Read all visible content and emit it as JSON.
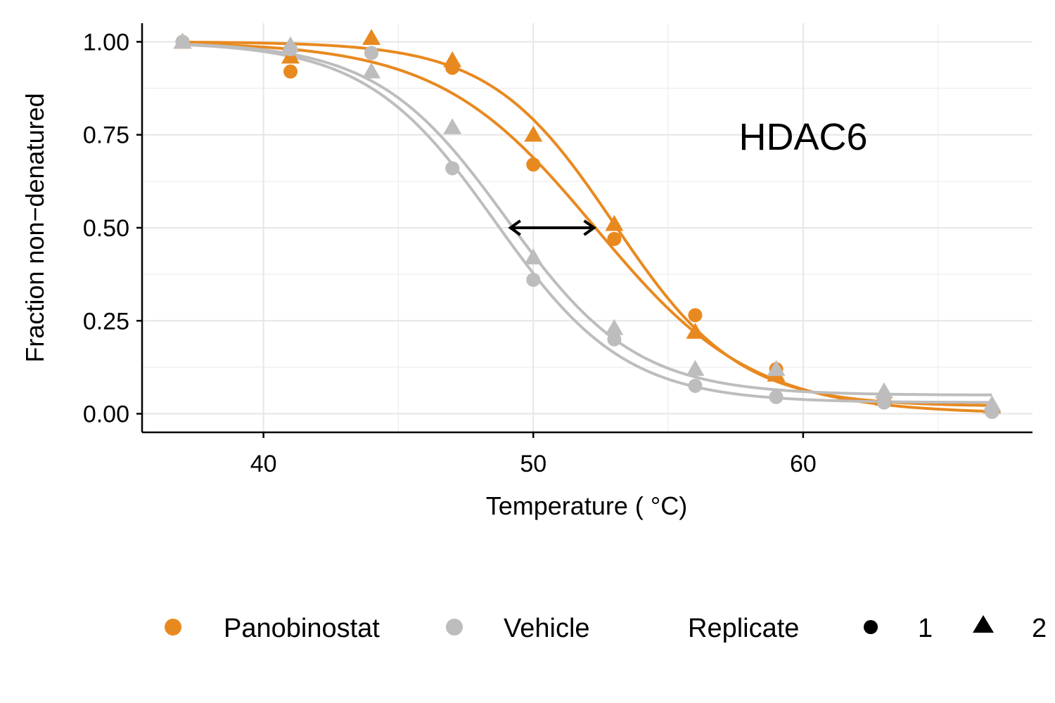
{
  "chart_data": {
    "type": "scatter",
    "title": "",
    "annotation": "HDAC6",
    "xlabel": "Temperature ( °C)",
    "ylabel": "Fraction non−denatured",
    "xlim": [
      35.5,
      68.5
    ],
    "ylim": [
      -0.05,
      1.05
    ],
    "x_ticks": [
      40,
      50,
      60
    ],
    "x_tick_labels": [
      "40",
      "50",
      "60"
    ],
    "y_ticks": [
      0,
      0.25,
      0.5,
      0.75,
      1
    ],
    "y_tick_labels": [
      "0.00",
      "0.25",
      "0.50",
      "0.75",
      "1.00"
    ],
    "grid": true,
    "legend_position": "bottom",
    "colors": {
      "Panobinostat": "#e8891f",
      "Vehicle": "#bdbdbd"
    },
    "legend": {
      "treatments": [
        "Panobinostat",
        "Vehicle"
      ],
      "replicate_title": "Replicate",
      "replicates": [
        "1",
        "2"
      ]
    },
    "series": [
      {
        "name": "Panobinostat",
        "replicate": "1",
        "x": [
          37,
          41,
          44,
          47,
          50,
          53,
          56,
          59,
          63,
          67
        ],
        "y": [
          1.0,
          0.92,
          0.97,
          0.93,
          0.67,
          0.47,
          0.265,
          0.12,
          0.035,
          0.005
        ],
        "fit": {
          "tm": 52.3,
          "slope": 2.9,
          "plateau": 0.0
        }
      },
      {
        "name": "Panobinostat",
        "replicate": "2",
        "x": [
          37,
          41,
          44,
          47,
          50,
          53,
          56,
          59,
          63,
          67
        ],
        "y": [
          1.0,
          0.96,
          1.01,
          0.95,
          0.75,
          0.51,
          0.22,
          0.105,
          0.04,
          0.02
        ],
        "fit": {
          "tm": 53.0,
          "slope": 2.3,
          "plateau": 0.02
        }
      },
      {
        "name": "Vehicle",
        "replicate": "1",
        "x": [
          37,
          41,
          44,
          47,
          50,
          53,
          56,
          59,
          63,
          67
        ],
        "y": [
          1.0,
          0.98,
          0.97,
          0.66,
          0.36,
          0.2,
          0.075,
          0.045,
          0.03,
          0.005
        ],
        "fit": {
          "tm": 48.6,
          "slope": 2.4,
          "plateau": 0.03
        }
      },
      {
        "name": "Vehicle",
        "replicate": "2",
        "x": [
          37,
          41,
          44,
          47,
          50,
          53,
          56,
          59,
          63,
          67
        ],
        "y": [
          1.0,
          0.99,
          0.92,
          0.77,
          0.42,
          0.23,
          0.12,
          0.12,
          0.06,
          0.025
        ],
        "fit": {
          "tm": 49.0,
          "slope": 2.4,
          "plateau": 0.05
        }
      }
    ],
    "shift_arrow": {
      "y": 0.5,
      "x_from": 49.1,
      "x_to": 52.3
    }
  }
}
